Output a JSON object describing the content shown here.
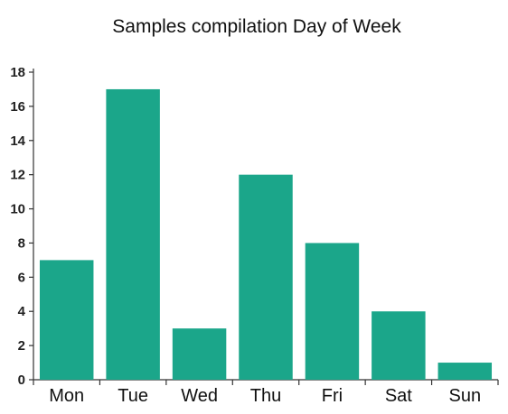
{
  "chart_data": {
    "type": "bar",
    "title": "Samples compilation Day of Week",
    "xlabel": "",
    "ylabel": "",
    "categories": [
      "Mon",
      "Tue",
      "Wed",
      "Thu",
      "Fri",
      "Sat",
      "Sun"
    ],
    "values": [
      7,
      17,
      3,
      12,
      8,
      4,
      1
    ],
    "ylim": [
      0,
      18
    ],
    "yticks": [
      "0",
      "2",
      "4",
      "6",
      "8",
      "10",
      "12",
      "14",
      "16",
      "18"
    ],
    "bar_color": "#1ba68a",
    "grid": false,
    "legend": "none"
  }
}
